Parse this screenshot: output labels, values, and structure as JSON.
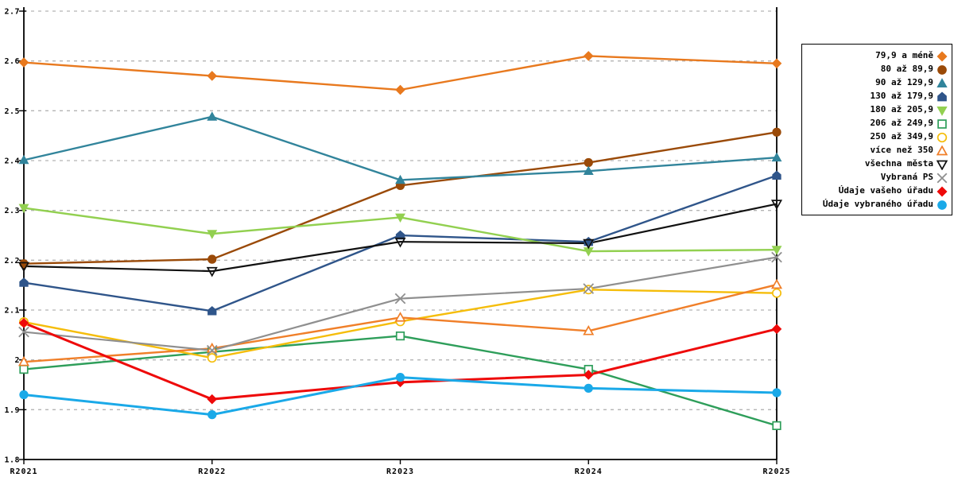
{
  "background": "#ffffff",
  "chart_data": {
    "type": "line",
    "title": "",
    "xlabel": "",
    "ylabel": "",
    "categories": [
      "R2021",
      "R2022",
      "R2023",
      "R2024",
      "R2025"
    ],
    "ylim": [
      1.8,
      2.7
    ],
    "ytick_step": 0.1,
    "ytick_labels": [
      "1.8",
      "1.9",
      "2",
      "2.1",
      "2.2",
      "2.3",
      "2.4",
      "2.5",
      "2.6",
      "2.7"
    ],
    "grid": "horizontal-dashed",
    "grid_color": "#b4b4b4",
    "axis_color": "#000000",
    "legend_position": "top-right",
    "series": [
      {
        "name": "79,9 a méně",
        "color": "#E8791E",
        "marker": "diamond",
        "marker_fill": "solid",
        "line_width": 2.4,
        "values": [
          2.597,
          2.57,
          2.542,
          2.61,
          2.595
        ]
      },
      {
        "name": "80 až 89,9",
        "color": "#9A4A08",
        "marker": "circle",
        "marker_fill": "solid",
        "line_width": 2.4,
        "values": [
          2.193,
          2.202,
          2.35,
          2.396,
          2.457
        ]
      },
      {
        "name": "90 až 129,9",
        "color": "#31849B",
        "marker": "triangle-up",
        "marker_fill": "solid",
        "line_width": 2.4,
        "values": [
          2.401,
          2.488,
          2.361,
          2.379,
          2.406
        ]
      },
      {
        "name": "130 až 179,9",
        "color": "#2F558A",
        "marker": "pentagon",
        "marker_fill": "solid",
        "line_width": 2.4,
        "values": [
          2.155,
          2.098,
          2.25,
          2.237,
          2.37
        ]
      },
      {
        "name": "180 až 205,9",
        "color": "#92D050",
        "marker": "triangle-down",
        "marker_fill": "solid",
        "line_width": 2.4,
        "values": [
          2.305,
          2.253,
          2.286,
          2.218,
          2.221
        ]
      },
      {
        "name": "206 až 249,9",
        "color": "#2E9E5A",
        "marker": "square",
        "marker_fill": "open",
        "line_width": 2.4,
        "values": [
          1.981,
          2.016,
          2.048,
          1.981,
          1.868
        ]
      },
      {
        "name": "250 až 349,9",
        "color": "#F5BD0A",
        "marker": "circle",
        "marker_fill": "open",
        "line_width": 2.4,
        "values": [
          2.076,
          2.004,
          2.077,
          2.141,
          2.134
        ]
      },
      {
        "name": "více než 350",
        "color": "#F07F29",
        "marker": "triangle-up",
        "marker_fill": "open",
        "line_width": 2.4,
        "values": [
          1.996,
          2.023,
          2.085,
          2.058,
          2.151
        ]
      },
      {
        "name": "všechna města",
        "color": "#111111",
        "marker": "triangle-down",
        "marker_fill": "none",
        "line_width": 2.2,
        "values": [
          2.188,
          2.178,
          2.237,
          2.234,
          2.313
        ]
      },
      {
        "name": "Vybraná PS",
        "color": "#8F8F8F",
        "marker": "x",
        "marker_fill": "none",
        "line_width": 2.2,
        "values": [
          2.056,
          2.019,
          2.123,
          2.143,
          2.206
        ]
      },
      {
        "name": "Údaje vašeho úřadu",
        "color": "#EE0A0A",
        "marker": "diamond",
        "marker_fill": "solid",
        "line_width": 3.0,
        "values": [
          2.074,
          1.921,
          1.955,
          1.97,
          2.062
        ]
      },
      {
        "name": "Údaje vybraného úřadu",
        "color": "#1AA9E8",
        "marker": "circle",
        "marker_fill": "solid",
        "line_width": 3.0,
        "values": [
          1.93,
          1.89,
          1.965,
          1.943,
          1.934
        ]
      }
    ]
  }
}
